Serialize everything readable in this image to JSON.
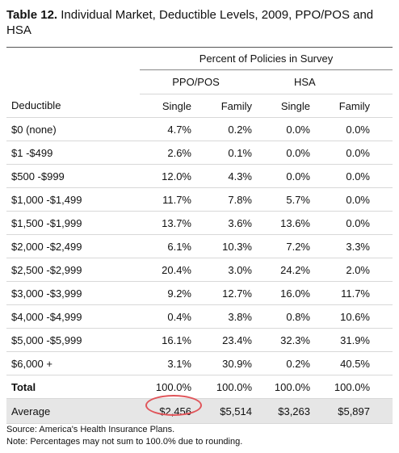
{
  "title": {
    "label": "Table 12.",
    "text": "Individual Market, Deductible Levels, 2009, PPO/POS and HSA"
  },
  "table": {
    "super_header": "Percent of Policies in Survey",
    "groups": [
      "PPO/POS",
      "HSA"
    ],
    "columns": [
      "Deductible",
      "Single",
      "Family",
      "Single",
      "Family"
    ],
    "rows": [
      [
        "$0 (none)",
        "4.7%",
        "0.2%",
        "0.0%",
        "0.0%"
      ],
      [
        "$1 -$499",
        "2.6%",
        "0.1%",
        "0.0%",
        "0.0%"
      ],
      [
        "$500 -$999",
        "12.0%",
        "4.3%",
        "0.0%",
        "0.0%"
      ],
      [
        "$1,000 -$1,499",
        "11.7%",
        "7.8%",
        "5.7%",
        "0.0%"
      ],
      [
        "$1,500 -$1,999",
        "13.7%",
        "3.6%",
        "13.6%",
        "0.0%"
      ],
      [
        "$2,000 -$2,499",
        "6.1%",
        "10.3%",
        "7.2%",
        "3.3%"
      ],
      [
        "$2,500 -$2,999",
        "20.4%",
        "3.0%",
        "24.2%",
        "2.0%"
      ],
      [
        "$3,000 -$3,999",
        "9.2%",
        "12.7%",
        "16.0%",
        "11.7%"
      ],
      [
        "$4,000 -$4,999",
        "0.4%",
        "3.8%",
        "0.8%",
        "10.6%"
      ],
      [
        "$5,000 -$5,999",
        "16.1%",
        "23.4%",
        "32.3%",
        "31.9%"
      ],
      [
        "$6,000 +",
        "3.1%",
        "30.9%",
        "0.2%",
        "40.5%"
      ]
    ],
    "total": [
      "Total",
      "100.0%",
      "100.0%",
      "100.0%",
      "100.0%"
    ],
    "average": [
      "Average",
      "$2,456",
      "$5,514",
      "$3,263",
      "$5,897"
    ]
  },
  "notes": [
    "Source: America's Health Insurance Plans.",
    "Note: Percentages may not sum to 100.0% due to rounding."
  ]
}
